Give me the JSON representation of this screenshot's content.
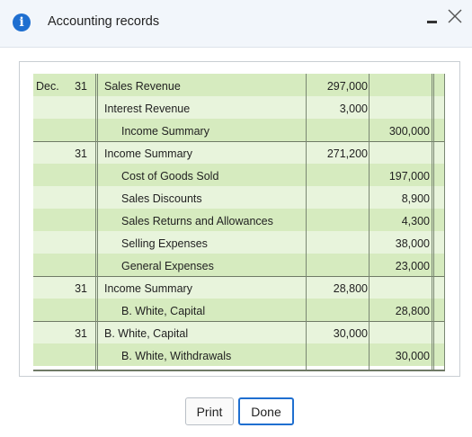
{
  "window": {
    "title": "Accounting records",
    "info_icon": "info-icon",
    "info_glyph": "i",
    "minimize_icon": "minimize-icon",
    "close_icon": "close-icon",
    "accent": "#1f6fd0"
  },
  "ledger": {
    "colors": {
      "row_dark": "#d6ebbf",
      "row_light": "#e8f4dc"
    },
    "rows": [
      {
        "month": "Dec.",
        "day": "31",
        "account": "Sales Revenue",
        "indent": false,
        "debit": "297,000",
        "credit": ""
      },
      {
        "month": "",
        "day": "",
        "account": "Interest Revenue",
        "indent": false,
        "debit": "3,000",
        "credit": ""
      },
      {
        "month": "",
        "day": "",
        "account": "Income Summary",
        "indent": true,
        "debit": "",
        "credit": "300,000"
      },
      {
        "month": "",
        "day": "31",
        "account": "Income Summary",
        "indent": false,
        "debit": "271,200",
        "credit": ""
      },
      {
        "month": "",
        "day": "",
        "account": "Cost of Goods Sold",
        "indent": true,
        "debit": "",
        "credit": "197,000"
      },
      {
        "month": "",
        "day": "",
        "account": "Sales Discounts",
        "indent": true,
        "debit": "",
        "credit": "8,900"
      },
      {
        "month": "",
        "day": "",
        "account": "Sales Returns and Allowances",
        "indent": true,
        "debit": "",
        "credit": "4,300"
      },
      {
        "month": "",
        "day": "",
        "account": "Selling Expenses",
        "indent": true,
        "debit": "",
        "credit": "38,000"
      },
      {
        "month": "",
        "day": "",
        "account": "General Expenses",
        "indent": true,
        "debit": "",
        "credit": "23,000"
      },
      {
        "month": "",
        "day": "31",
        "account": "Income Summary",
        "indent": false,
        "debit": "28,800",
        "credit": ""
      },
      {
        "month": "",
        "day": "",
        "account": "B. White, Capital",
        "indent": true,
        "debit": "",
        "credit": "28,800"
      },
      {
        "month": "",
        "day": "31",
        "account": "B. White, Capital",
        "indent": false,
        "debit": "30,000",
        "credit": ""
      },
      {
        "month": "",
        "day": "",
        "account": "B. White, Withdrawals",
        "indent": true,
        "debit": "",
        "credit": "30,000"
      }
    ]
  },
  "footer": {
    "print_label": "Print",
    "done_label": "Done"
  }
}
